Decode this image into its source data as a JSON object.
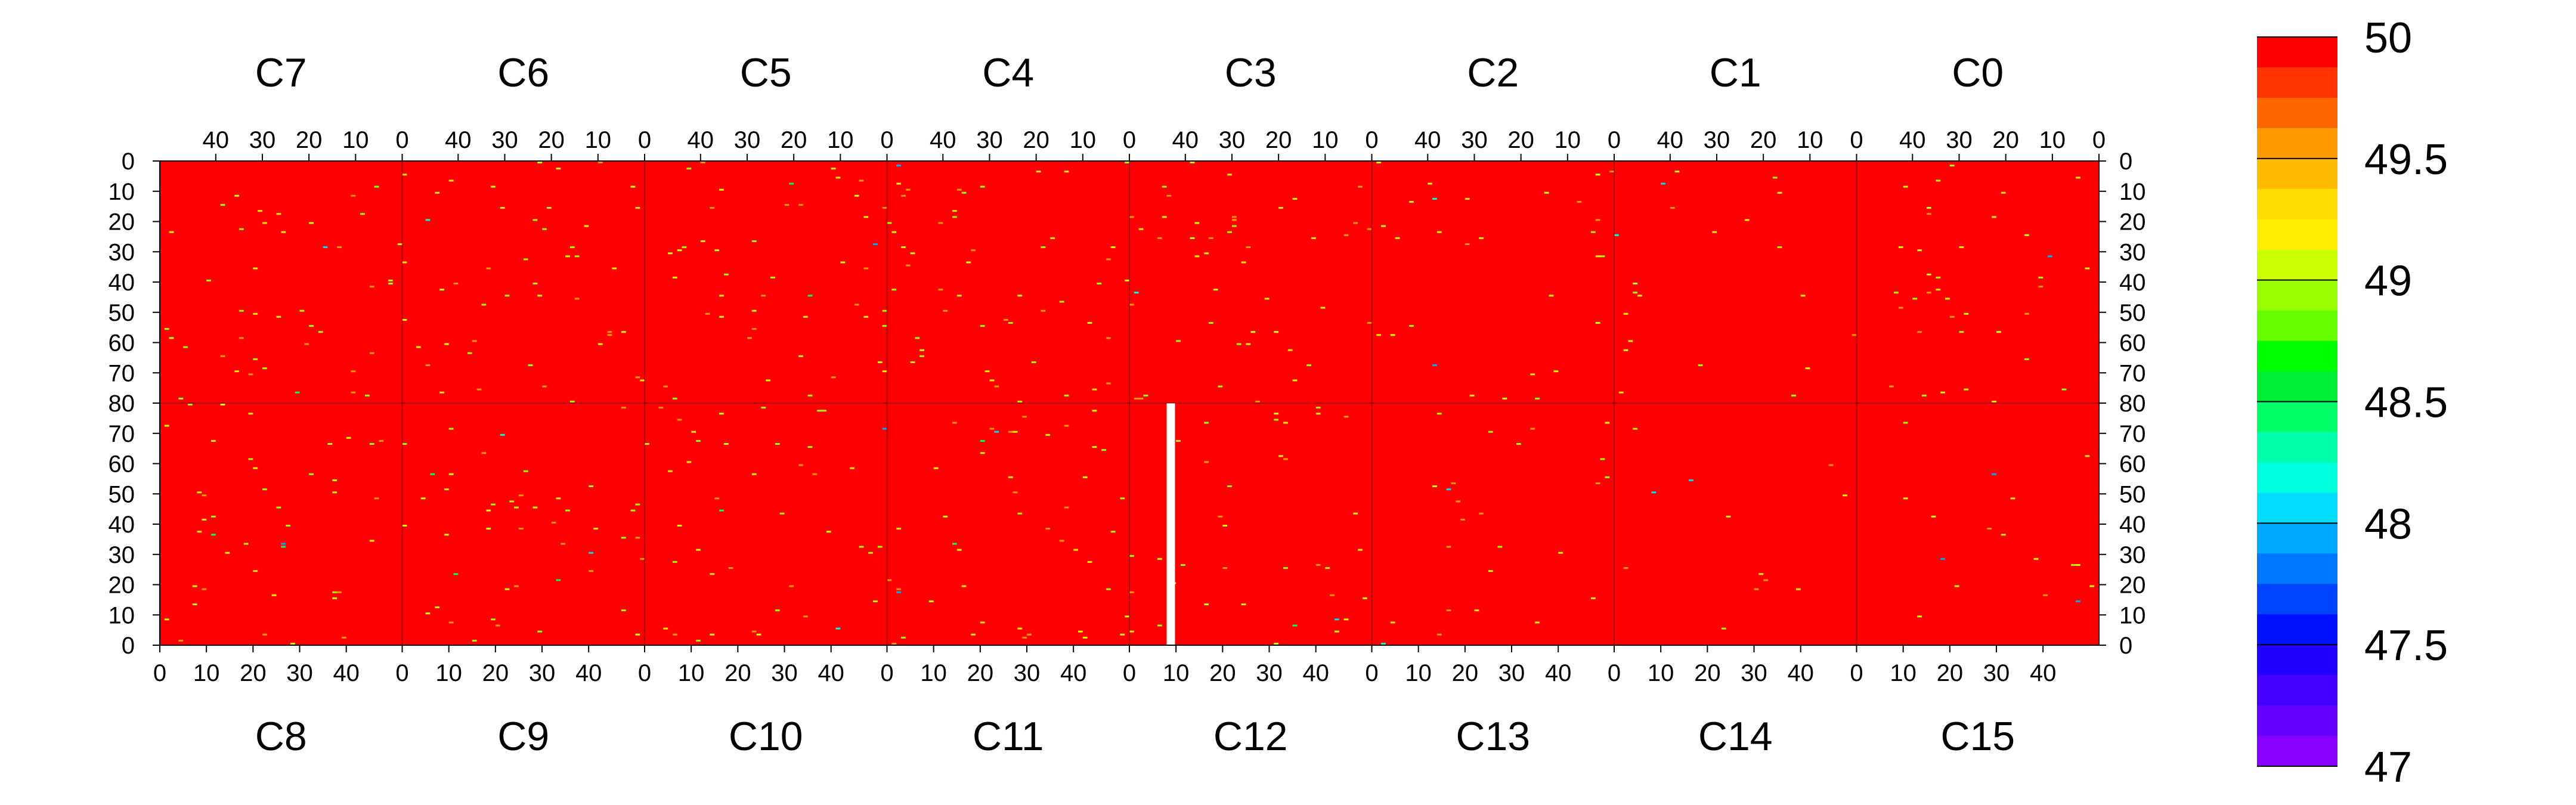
{
  "chart_data": {
    "type": "heatmap",
    "title": "",
    "top_chips": [
      "C7",
      "C6",
      "C5",
      "C4",
      "C3",
      "C2",
      "C1",
      "C0"
    ],
    "bottom_chips": [
      "C8",
      "C9",
      "C10",
      "C11",
      "C12",
      "C13",
      "C14",
      "C15"
    ],
    "top_x_ticks": [
      "40",
      "30",
      "20",
      "10",
      "0"
    ],
    "bottom_x_ticks": [
      "0",
      "10",
      "20",
      "30",
      "40"
    ],
    "y_ticks_top_half": [
      "0",
      "10",
      "20",
      "30",
      "40",
      "50",
      "60",
      "70",
      "80"
    ],
    "y_ticks_bottom_half": [
      "70",
      "60",
      "50",
      "40",
      "30",
      "20",
      "10",
      "0"
    ],
    "columns_per_chip": 52,
    "rows_per_half": 80,
    "zlim": [
      47,
      50
    ],
    "background_value": 50,
    "colorbar": {
      "labels": [
        "50",
        "49.5",
        "49",
        "48.5",
        "48",
        "47.5",
        "47"
      ],
      "min": 47,
      "max": 50,
      "colors": [
        "#ff0000",
        "#ff3300",
        "#ff6600",
        "#ff9900",
        "#ffbb00",
        "#ffdd00",
        "#ffee00",
        "#ccff00",
        "#99ff00",
        "#66ff00",
        "#00ff00",
        "#00ee33",
        "#00ff66",
        "#00ffaa",
        "#00ffdd",
        "#00ddff",
        "#00aaff",
        "#0077ff",
        "#0044ff",
        "#0011ff",
        "#2200ff",
        "#4400ff",
        "#6600ff",
        "#8800ff"
      ]
    },
    "dead_column": {
      "chip": "C12",
      "column": 8
    },
    "near_max_colors": [
      "#ffee00",
      "#ccff00",
      "#ff9900",
      "#99ff00"
    ],
    "rare_low_colors": [
      "#00ffdd",
      "#00ddff",
      "#00ff66",
      "#00aaff"
    ],
    "pixel_density_per_chip_top": [
      0.01,
      0.011,
      0.011,
      0.012,
      0.011,
      0.007,
      0.005,
      0.009
    ],
    "pixel_density_per_chip_bottom": [
      0.01,
      0.011,
      0.01,
      0.011,
      0.009,
      0.006,
      0.003,
      0.004
    ]
  }
}
